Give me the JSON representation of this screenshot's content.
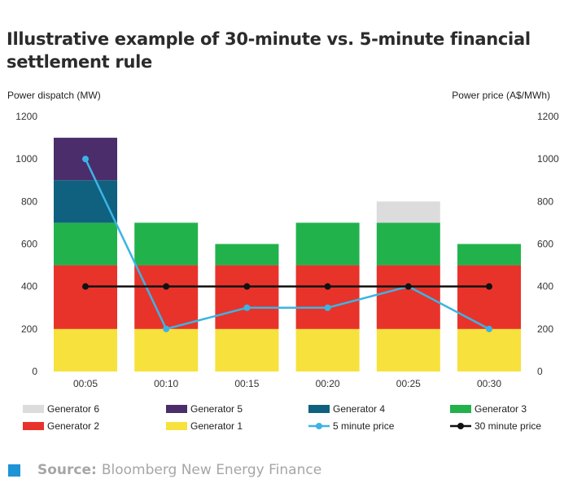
{
  "title": "Illustrative example of 30-minute vs. 5-minute financial settlement rule",
  "source": {
    "label": "Source:",
    "value": "Bloomberg New Energy Finance"
  },
  "chart_data": {
    "type": "bar",
    "stacked": true,
    "title": "Illustrative example of 30-minute vs. 5-minute financial settlement rule",
    "ylabel_left": "Power dispatch (MW)",
    "ylabel_right": "Power price (A$/MWh)",
    "ylim": [
      0,
      1200
    ],
    "yticks": [
      0,
      200,
      400,
      600,
      800,
      1000,
      1200
    ],
    "grid": false,
    "legend_position": "bottom",
    "categories": [
      "00:05",
      "00:10",
      "00:15",
      "00:20",
      "00:25",
      "00:30"
    ],
    "series": [
      {
        "name": "Generator  1",
        "type": "bar",
        "color": "#f7e13c",
        "values": [
          200,
          200,
          200,
          200,
          200,
          200
        ]
      },
      {
        "name": "Generator 2",
        "type": "bar",
        "color": "#e8332a",
        "values": [
          300,
          300,
          300,
          300,
          300,
          300
        ]
      },
      {
        "name": "Generator 3",
        "type": "bar",
        "color": "#22b24c",
        "values": [
          200,
          200,
          100,
          200,
          200,
          100
        ]
      },
      {
        "name": "Generator 4",
        "type": "bar",
        "color": "#0f617f",
        "values": [
          200,
          0,
          0,
          0,
          0,
          0
        ]
      },
      {
        "name": "Generator 5",
        "type": "bar",
        "color": "#4b2d6c",
        "values": [
          200,
          0,
          0,
          0,
          0,
          0
        ]
      },
      {
        "name": "Generator 6",
        "type": "bar",
        "color": "#dcdcdc",
        "values": [
          0,
          0,
          0,
          0,
          100,
          0
        ]
      },
      {
        "name": "5 minute price",
        "type": "line",
        "color": "#3bb4e5",
        "values": [
          1000,
          200,
          300,
          300,
          400,
          200
        ]
      },
      {
        "name": "30 minute price",
        "type": "line",
        "color": "#111111",
        "values": [
          400,
          400,
          400,
          400,
          400,
          400
        ]
      }
    ],
    "legend_order": [
      "Generator 6",
      "Generator 5",
      "Generator 4",
      "Generator 3",
      "Generator 2",
      "Generator  1",
      "5 minute price",
      "30 minute price"
    ]
  }
}
